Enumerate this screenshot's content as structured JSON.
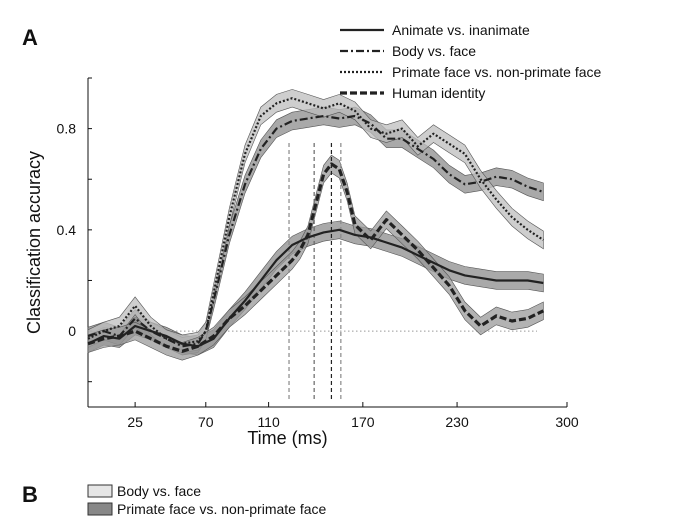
{
  "panel_a_label": "A",
  "panel_b_label": "B",
  "chart_data": {
    "type": "line",
    "title": "",
    "xlabel": "Time (ms)",
    "ylabel": "Classification accuracy",
    "xlim": [
      -5,
      300
    ],
    "ylim": [
      -0.3,
      1.0
    ],
    "xticks": [
      25,
      70,
      110,
      170,
      230,
      300
    ],
    "yticks": [
      0,
      0.4,
      0.8
    ],
    "ytick_labels": [
      "0",
      "0.4",
      "0.8"
    ],
    "zero_line": true,
    "legend_position": "top-right",
    "series": [
      {
        "name": "Animate vs. inanimate",
        "style": "solid",
        "color": "#222222",
        "band_color": "#8c8c8c",
        "x": [
          -5,
          5,
          15,
          25,
          35,
          45,
          55,
          65,
          75,
          85,
          95,
          105,
          115,
          125,
          135,
          145,
          155,
          165,
          175,
          185,
          195,
          205,
          215,
          225,
          235,
          245,
          255,
          265,
          275,
          285
        ],
        "y": [
          -0.05,
          -0.02,
          -0.03,
          0.02,
          0.0,
          -0.02,
          -0.05,
          -0.06,
          -0.03,
          0.05,
          0.12,
          0.2,
          0.28,
          0.34,
          0.37,
          0.39,
          0.4,
          0.38,
          0.37,
          0.35,
          0.33,
          0.3,
          0.27,
          0.24,
          0.22,
          0.21,
          0.2,
          0.2,
          0.2,
          0.19
        ]
      },
      {
        "name": "Body vs. face",
        "style": "dashdot",
        "color": "#222222",
        "band_color": "#8c8c8c",
        "x": [
          -5,
          5,
          15,
          25,
          35,
          45,
          55,
          65,
          70,
          75,
          80,
          85,
          95,
          105,
          115,
          125,
          135,
          145,
          155,
          165,
          175,
          185,
          195,
          205,
          215,
          225,
          235,
          245,
          255,
          265,
          275,
          285
        ],
        "y": [
          -0.02,
          0.0,
          -0.02,
          0.05,
          0.0,
          -0.03,
          -0.06,
          -0.05,
          0.0,
          0.12,
          0.25,
          0.38,
          0.58,
          0.72,
          0.8,
          0.83,
          0.84,
          0.85,
          0.84,
          0.85,
          0.82,
          0.76,
          0.76,
          0.72,
          0.68,
          0.62,
          0.58,
          0.59,
          0.61,
          0.6,
          0.57,
          0.55
        ]
      },
      {
        "name": "Primate face vs. non-primate face",
        "style": "dotted",
        "color": "#222222",
        "band_color": "#bdbdbd",
        "x": [
          -5,
          5,
          15,
          25,
          35,
          45,
          55,
          65,
          70,
          75,
          80,
          85,
          95,
          105,
          115,
          125,
          135,
          145,
          155,
          165,
          175,
          185,
          195,
          205,
          215,
          225,
          235,
          245,
          255,
          265,
          275,
          285
        ],
        "y": [
          -0.03,
          0.0,
          0.02,
          0.1,
          0.02,
          -0.03,
          -0.05,
          -0.04,
          0.0,
          0.15,
          0.3,
          0.45,
          0.7,
          0.85,
          0.9,
          0.92,
          0.9,
          0.88,
          0.9,
          0.87,
          0.8,
          0.78,
          0.8,
          0.73,
          0.78,
          0.74,
          0.7,
          0.6,
          0.52,
          0.45,
          0.4,
          0.36
        ]
      },
      {
        "name": "Human identity",
        "style": "dashed",
        "color": "#222222",
        "band_color": "#9a9a9a",
        "x": [
          -5,
          5,
          15,
          25,
          35,
          45,
          55,
          65,
          75,
          85,
          95,
          105,
          115,
          125,
          130,
          135,
          140,
          145,
          150,
          155,
          160,
          165,
          175,
          185,
          195,
          205,
          215,
          225,
          235,
          245,
          255,
          265,
          275,
          285
        ],
        "y": [
          -0.05,
          -0.03,
          -0.02,
          0.0,
          -0.03,
          -0.06,
          -0.08,
          -0.06,
          -0.02,
          0.05,
          0.1,
          0.16,
          0.22,
          0.28,
          0.32,
          0.38,
          0.5,
          0.62,
          0.66,
          0.64,
          0.55,
          0.42,
          0.36,
          0.44,
          0.38,
          0.32,
          0.25,
          0.18,
          0.08,
          0.02,
          0.06,
          0.04,
          0.05,
          0.08
        ]
      }
    ],
    "peak_markers": [
      {
        "x": 123,
        "color": "#888888",
        "style": "dashed"
      },
      {
        "x": 139,
        "color": "#666666",
        "style": "dashed"
      },
      {
        "x": 150,
        "color": "#222222",
        "style": "dashed"
      },
      {
        "x": 156,
        "color": "#888888",
        "style": "dashed"
      }
    ]
  },
  "panel_b_legend": [
    {
      "label": "Body vs. face",
      "swatch_color": "#e6e6e6"
    },
    {
      "label": "Primate face vs. non-primate face",
      "swatch_color": "#888888"
    }
  ]
}
